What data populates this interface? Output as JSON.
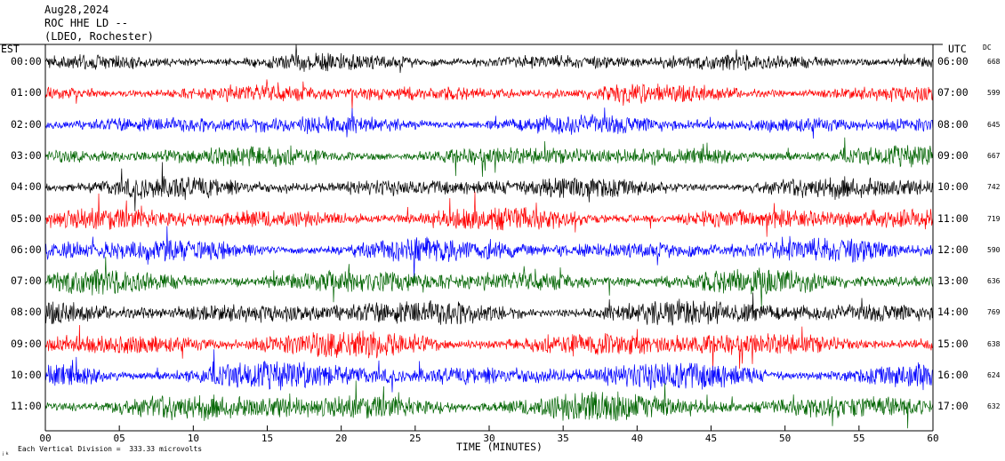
{
  "header": {
    "date": "Aug28,2024",
    "station": "ROC HHE LD --",
    "network": "(LDEO, Rochester)"
  },
  "left_axis_title": "EST",
  "right_axis_title": "UTC",
  "dc_title": "DC",
  "footer": {
    "scale_note": "Each Vertical Division =  333.33 microvolts",
    "corner_mark": "ⱼₖ"
  },
  "chart_data": {
    "type": "line",
    "title": "",
    "xlabel": "TIME (MINUTES)",
    "ylabel": "",
    "xlim": [
      0,
      60
    ],
    "x_ticks": [
      "00",
      "05",
      "10",
      "15",
      "20",
      "25",
      "30",
      "35",
      "40",
      "45",
      "50",
      "55",
      "60"
    ],
    "series_colors": [
      "#000000",
      "#ff0000",
      "#0000ff",
      "#006400"
    ],
    "rows": [
      {
        "est": "00:00",
        "utc": "06:00",
        "dc": "668",
        "color": "#000000"
      },
      {
        "est": "01:00",
        "utc": "07:00",
        "dc": "599",
        "color": "#ff0000"
      },
      {
        "est": "02:00",
        "utc": "08:00",
        "dc": "645",
        "color": "#0000ff"
      },
      {
        "est": "03:00",
        "utc": "09:00",
        "dc": "667",
        "color": "#006400"
      },
      {
        "est": "04:00",
        "utc": "10:00",
        "dc": "742",
        "color": "#000000"
      },
      {
        "est": "05:00",
        "utc": "11:00",
        "dc": "719",
        "color": "#ff0000"
      },
      {
        "est": "06:00",
        "utc": "12:00",
        "dc": "590",
        "color": "#0000ff"
      },
      {
        "est": "07:00",
        "utc": "13:00",
        "dc": "636",
        "color": "#006400"
      },
      {
        "est": "08:00",
        "utc": "14:00",
        "dc": "769",
        "color": "#000000"
      },
      {
        "est": "09:00",
        "utc": "15:00",
        "dc": "638",
        "color": "#ff0000"
      },
      {
        "est": "10:00",
        "utc": "16:00",
        "dc": "624",
        "color": "#0000ff"
      },
      {
        "est": "11:00",
        "utc": "17:00",
        "dc": "632",
        "color": "#006400"
      }
    ]
  }
}
